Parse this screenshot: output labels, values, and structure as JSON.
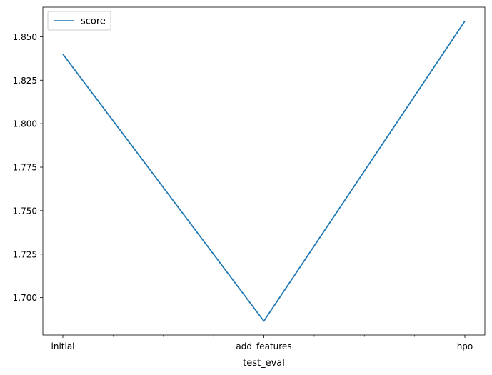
{
  "chart_data": {
    "type": "line",
    "title": "",
    "xlabel": "test_eval",
    "ylabel": "",
    "categories": [
      "initial",
      "add_features",
      "hpo"
    ],
    "series": [
      {
        "name": "score",
        "values": [
          1.84,
          1.6865,
          1.859
        ],
        "color": "#1f77b4"
      }
    ],
    "ylim": [
      1.6785,
      1.867
    ],
    "yticks": [
      1.7,
      1.725,
      1.75,
      1.775,
      1.8,
      1.825,
      1.85
    ],
    "ytick_labels": [
      "1.700",
      "1.725",
      "1.750",
      "1.775",
      "1.800",
      "1.825",
      "1.850"
    ],
    "minor_xticks_between": 3,
    "grid": false,
    "legend_position": "upper left"
  }
}
